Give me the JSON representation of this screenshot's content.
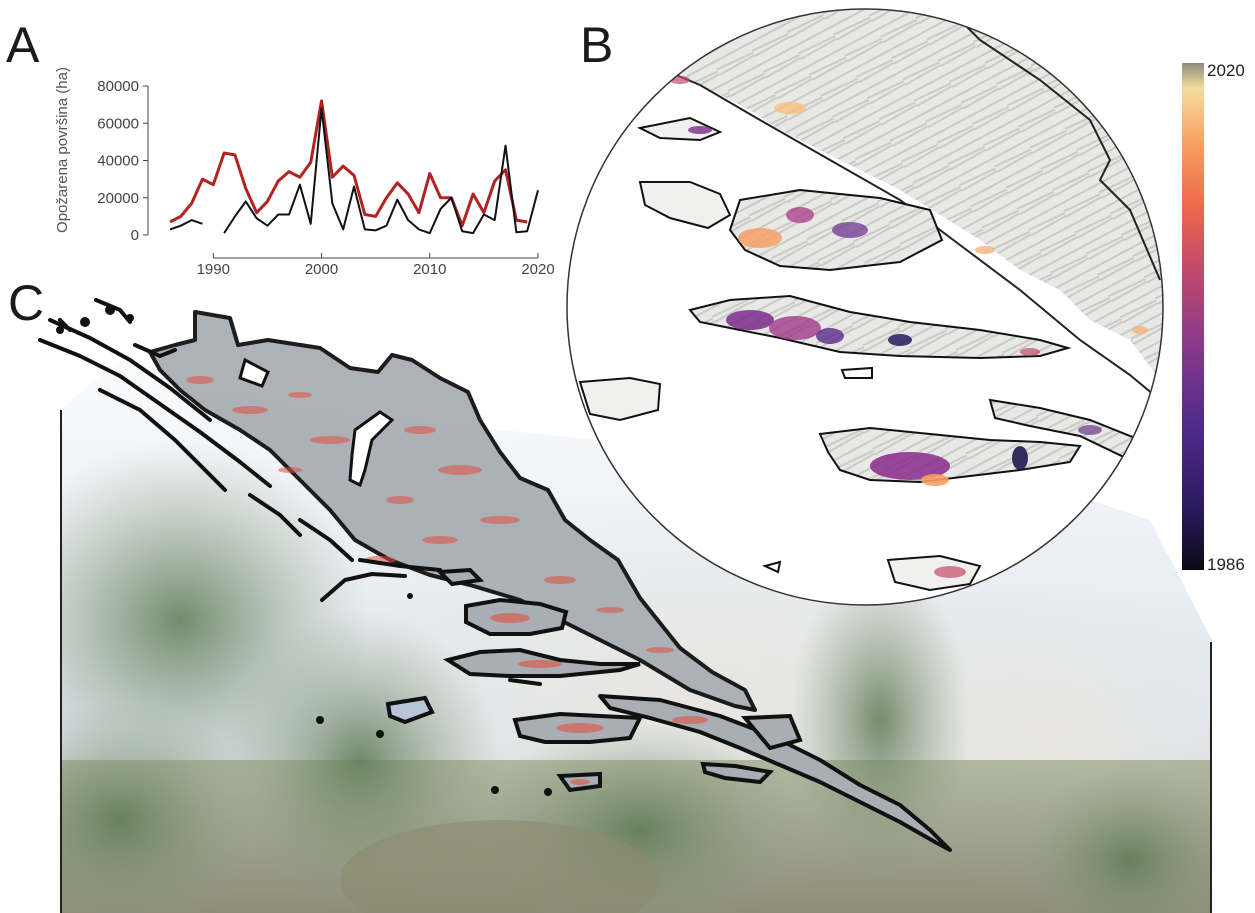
{
  "panels": {
    "a": "A",
    "b": "B",
    "c": "C"
  },
  "colorbar": {
    "label_top": "2020",
    "label_bottom": "1986",
    "range": [
      1986,
      2020
    ],
    "colors": [
      "#0b0a14",
      "#2a1a5e",
      "#4f2a8a",
      "#8a3a8a",
      "#c44a6a",
      "#ee6a4a",
      "#f8a060",
      "#f6dc9e",
      "#e8ecd0"
    ]
  },
  "colors": {
    "series_red": "#b22222",
    "series_black": "#111111",
    "burn_overlay": "#e05040",
    "land_grey": "#a9aeb5",
    "map_grey": "#cfcfcf"
  },
  "chart_data": {
    "type": "line",
    "ylabel": "Opožarena površina (ha)",
    "xlabel": "",
    "x_ticks": [
      1990,
      2000,
      2010,
      2020
    ],
    "y_ticks": [
      0,
      20000,
      40000,
      60000,
      80000
    ],
    "xlim": [
      1986,
      2020
    ],
    "ylim": [
      0,
      80000
    ],
    "x": [
      1986,
      1987,
      1988,
      1989,
      1990,
      1991,
      1992,
      1993,
      1994,
      1995,
      1996,
      1997,
      1998,
      1999,
      2000,
      2001,
      2002,
      2003,
      2004,
      2005,
      2006,
      2007,
      2008,
      2009,
      2010,
      2011,
      2012,
      2013,
      2014,
      2015,
      2016,
      2017,
      2018,
      2019,
      2020
    ],
    "series": [
      {
        "color": "#b22222",
        "values": [
          7000,
          10000,
          17000,
          30000,
          27000,
          44000,
          43000,
          25000,
          12000,
          18000,
          29000,
          34000,
          31000,
          39000,
          72000,
          31000,
          37000,
          32000,
          11000,
          10000,
          20000,
          28000,
          22000,
          12000,
          33000,
          20000,
          20000,
          5000,
          22000,
          12000,
          29000,
          35000,
          8000,
          7000,
          null
        ]
      },
      {
        "color": "#111111",
        "values": [
          3000,
          5000,
          8000,
          6000,
          null,
          1000,
          10000,
          18000,
          9000,
          5000,
          11000,
          11000,
          27000,
          6000,
          68000,
          17000,
          3000,
          26000,
          3000,
          2500,
          5000,
          19000,
          8000,
          3000,
          1000,
          14000,
          20000,
          2000,
          1000,
          11000,
          8000,
          48000,
          1500,
          2000,
          24000
        ]
      }
    ]
  }
}
